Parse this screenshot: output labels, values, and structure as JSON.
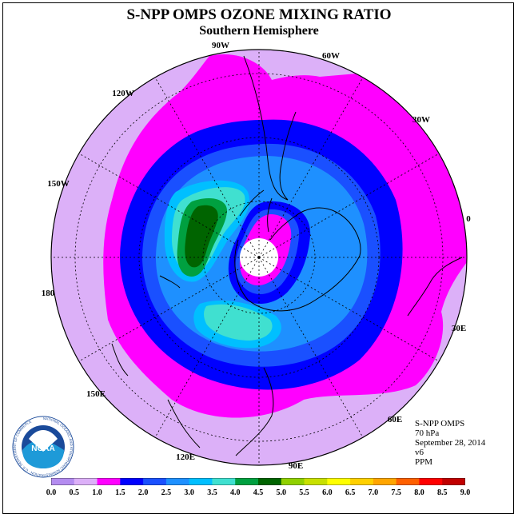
{
  "title": "S-NPP OMPS OZONE MIXING RATIO",
  "subtitle": "Southern Hemisphere",
  "longitude_labels": [
    {
      "text": "90W"
    },
    {
      "text": "60W"
    },
    {
      "text": "120W"
    },
    {
      "text": "30W"
    },
    {
      "text": "150W"
    },
    {
      "text": "0"
    },
    {
      "text": "180"
    },
    {
      "text": "30E"
    },
    {
      "text": "150E"
    },
    {
      "text": "60E"
    },
    {
      "text": "120E"
    },
    {
      "text": "90E"
    }
  ],
  "info": {
    "instrument": "S-NPP OMPS",
    "level": "70 hPa",
    "date": "September 28, 2014",
    "version": "v6",
    "units": "PPM"
  },
  "logo": {
    "text": "NOAA",
    "ring_text": "NATIONAL OCEANIC AND ATMOSPHERIC ADMINISTRATION · U.S. DEPARTMENT OF COMMERCE"
  },
  "colorbar": {
    "labels": [
      "0.0",
      "0.5",
      "1.0",
      "1.5",
      "2.0",
      "2.5",
      "3.0",
      "3.5",
      "4.0",
      "4.5",
      "5.0",
      "5.5",
      "6.0",
      "6.5",
      "7.0",
      "7.5",
      "8.0",
      "8.5",
      "9.0"
    ],
    "colors": [
      "#b48cf0",
      "#dcb0f8",
      "#ff00ff",
      "#0000ff",
      "#1a50ff",
      "#1e90ff",
      "#00bfff",
      "#40e0d0",
      "#00a040",
      "#006400",
      "#90d000",
      "#c8e000",
      "#ffff00",
      "#ffd000",
      "#ffa500",
      "#ff6000",
      "#ff0000",
      "#c00000"
    ]
  },
  "map_colors": {
    "ocean_outer": "#dcb0f8",
    "band_magenta": "#ff00ff",
    "band_blue": "#0000ff",
    "band_royal": "#1a50ff",
    "band_dodger": "#1e90ff",
    "band_sky": "#00bfff",
    "band_turquoise": "#40e0d0",
    "band_green": "#00a040",
    "band_darkgreen": "#006400",
    "pole_white": "#ffffff"
  }
}
